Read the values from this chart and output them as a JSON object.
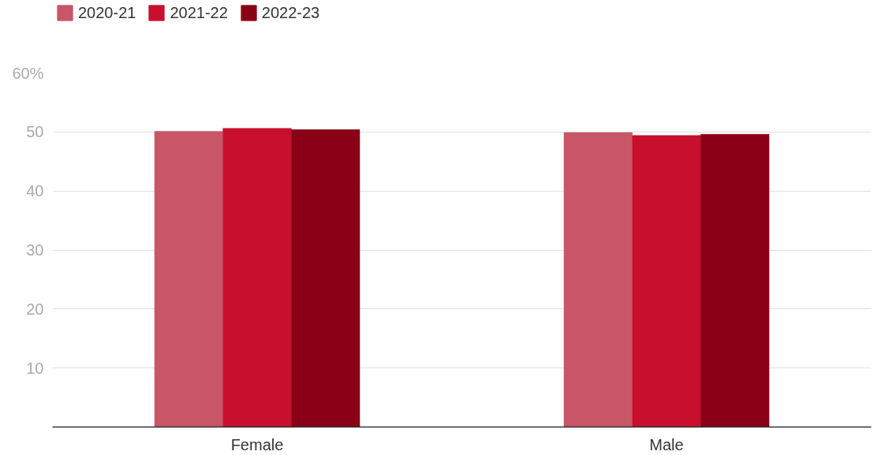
{
  "chart_data": {
    "type": "bar",
    "categories": [
      "Female",
      "Male"
    ],
    "series": [
      {
        "name": "2020-21",
        "color": "#c85667",
        "values": [
          50.1,
          49.9
        ]
      },
      {
        "name": "2021-22",
        "color": "#c8102e",
        "values": [
          50.6,
          49.4
        ]
      },
      {
        "name": "2022-23",
        "color": "#8a0016",
        "values": [
          50.4,
          49.6
        ]
      }
    ],
    "ylim": [
      0,
      60
    ],
    "yticks": [
      10,
      20,
      30,
      40,
      50,
      {
        "value": 60,
        "label": "60%"
      }
    ],
    "grid": "y",
    "legend": "top left"
  }
}
